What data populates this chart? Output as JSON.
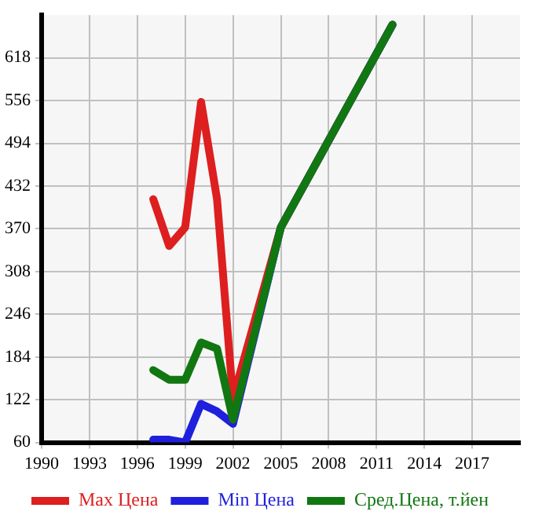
{
  "chart_data": {
    "type": "line",
    "x": [
      1997,
      1998,
      1999,
      2000,
      2001,
      2002,
      2005,
      2012
    ],
    "series": [
      {
        "name": "Max Цена",
        "color": "#dd1f1f",
        "values": [
          413,
          345,
          372,
          554,
          413,
          124,
          372,
          666
        ]
      },
      {
        "name": "Min Цена",
        "color": "#1f1fdd",
        "values": [
          64,
          64,
          60,
          116,
          105,
          87,
          372,
          666
        ]
      },
      {
        "name": "Сред.Цена, т.йен",
        "color": "#117711",
        "values": [
          165,
          151,
          151,
          205,
          196,
          93,
          372,
          666
        ]
      }
    ],
    "xlim": [
      1990,
      2020
    ],
    "xticks": [
      1990,
      1993,
      1996,
      1999,
      2002,
      2005,
      2008,
      2011,
      2014,
      2017
    ],
    "ylim": [
      60,
      680
    ],
    "yticks": [
      60,
      122,
      184,
      246,
      308,
      370,
      432,
      494,
      556,
      618
    ],
    "grid": true,
    "legend": "bottom",
    "marker": "none",
    "line_style": "solid"
  }
}
